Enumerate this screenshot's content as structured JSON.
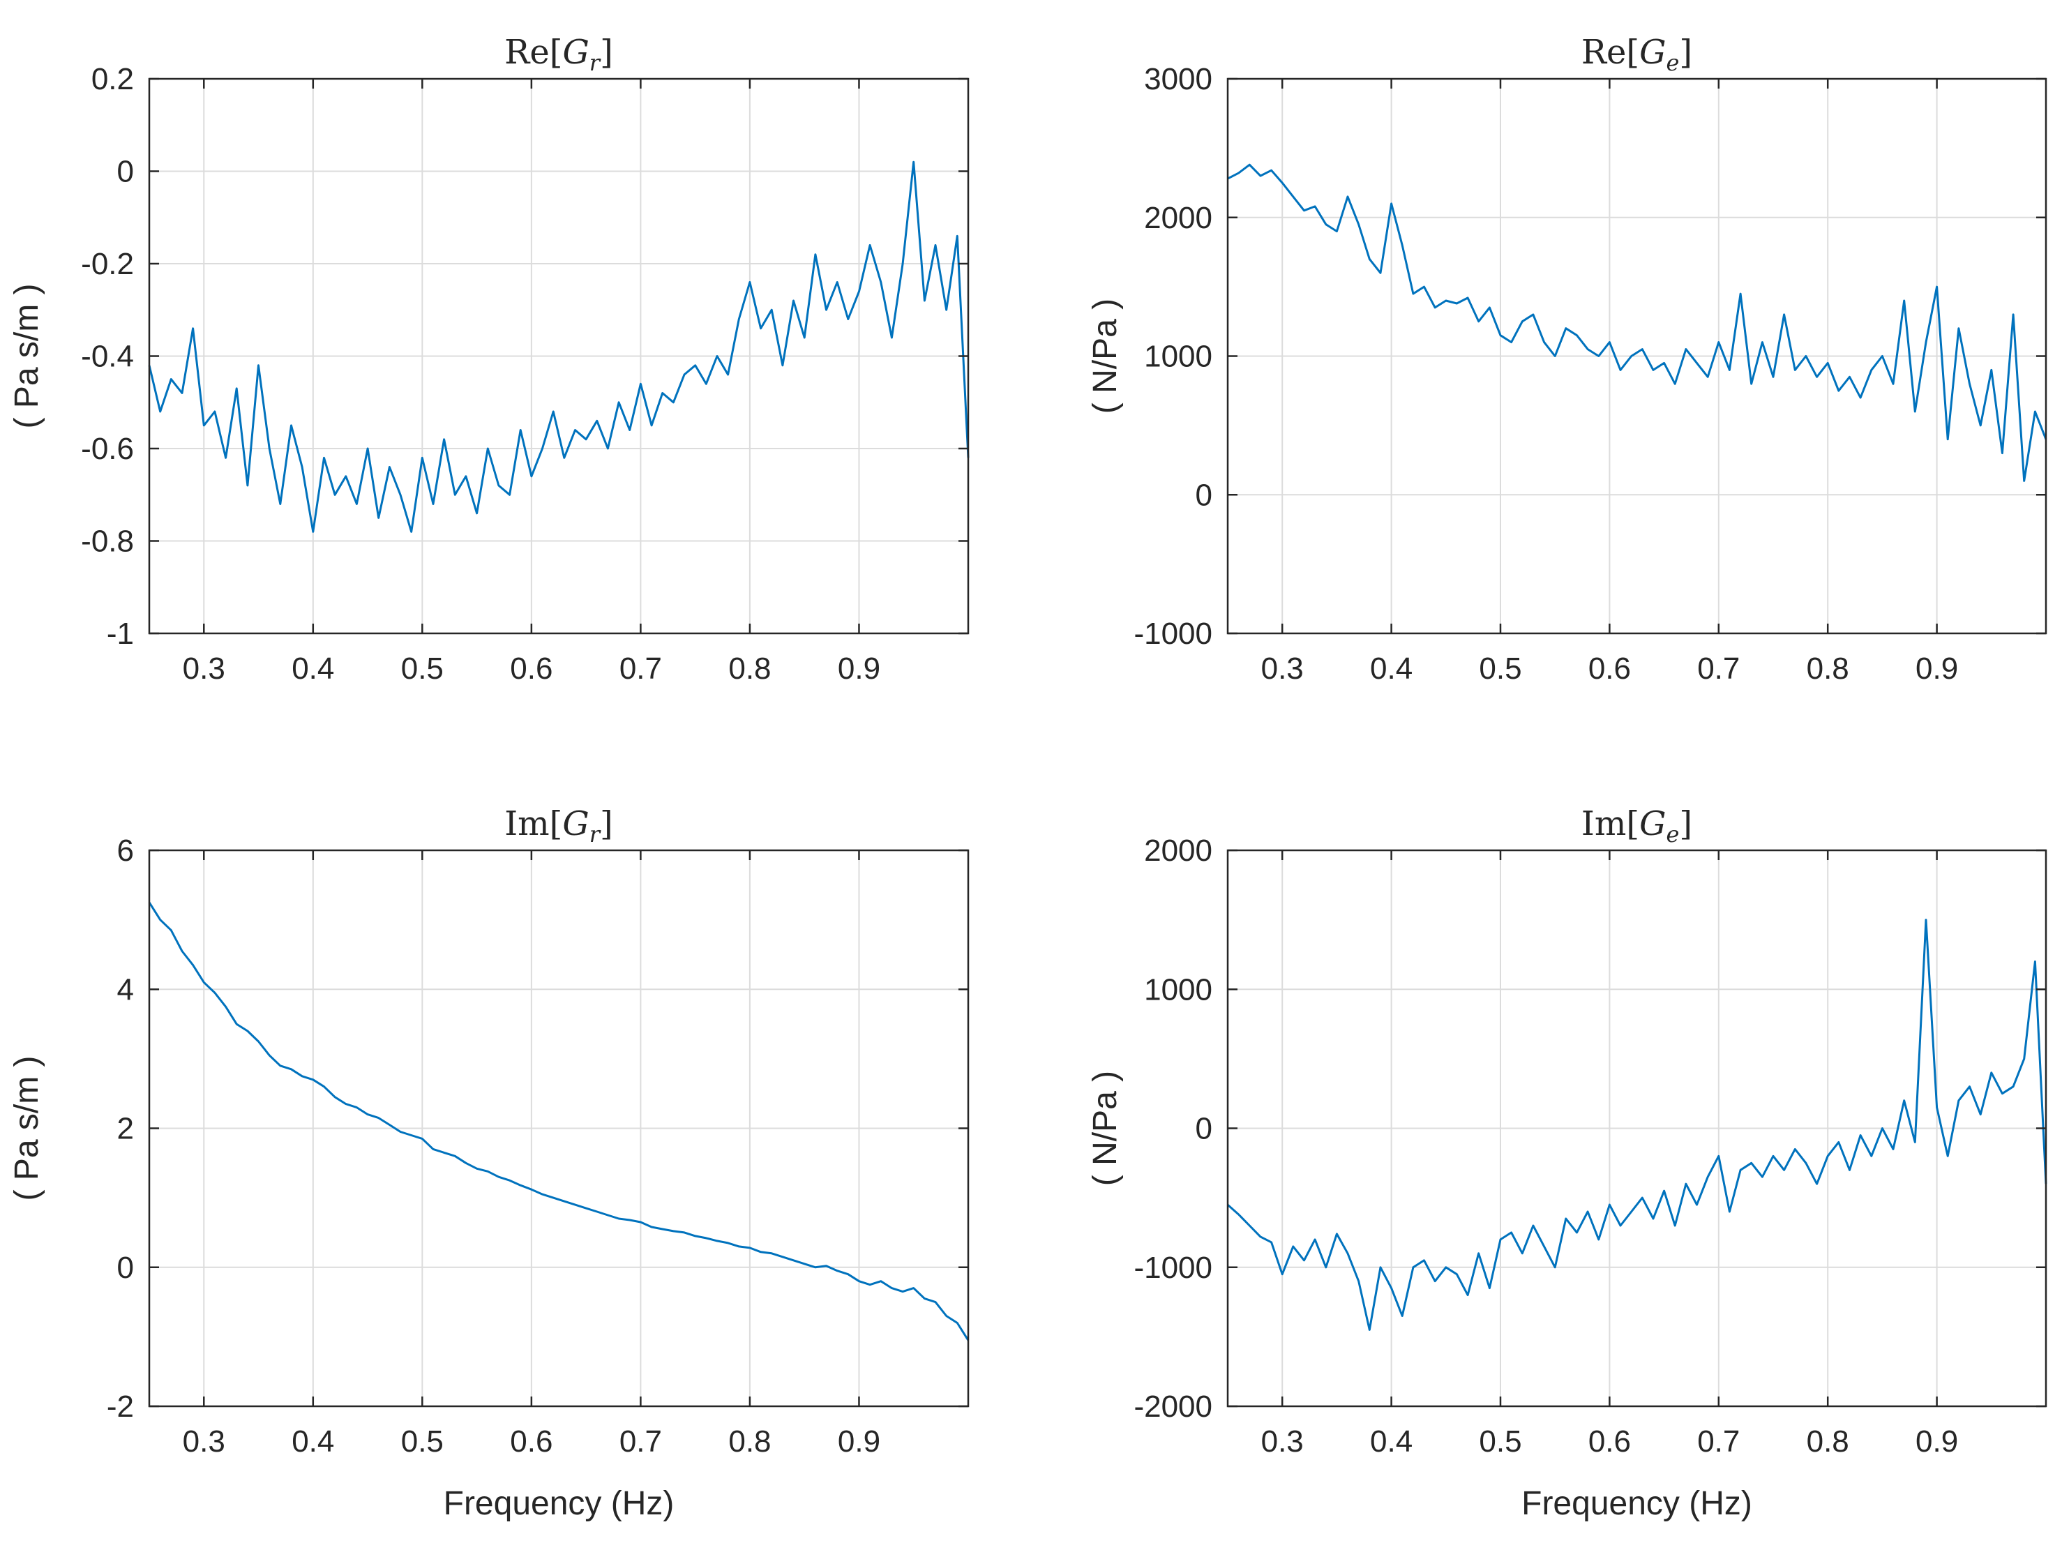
{
  "colors": {
    "line": "#0072bd",
    "grid": "#dcdcdc",
    "axis": "#262626",
    "background": "#ffffff"
  },
  "chart_data": [
    {
      "type": "line",
      "title_base": "Re",
      "title_var": "G",
      "title_sub": "r",
      "xlabel": "",
      "ylabel": "( Pa s/m )",
      "xlim": [
        0.25,
        1.0
      ],
      "ylim": [
        -1,
        0.2
      ],
      "xticks": [
        0.3,
        0.4,
        0.5,
        0.6,
        0.7,
        0.8,
        0.9
      ],
      "xtick_labels": [
        "0.3",
        "0.4",
        "0.5",
        "0.6",
        "0.7",
        "0.8",
        "0.9"
      ],
      "yticks": [
        -1,
        -0.8,
        -0.6,
        -0.4,
        -0.2,
        0,
        0.2
      ],
      "ytick_labels": [
        "-1",
        "-0.8",
        "-0.6",
        "-0.4",
        "-0.2",
        "0",
        "0.2"
      ],
      "grid": true,
      "series": [
        {
          "name": "Re[Gr]",
          "x": [
            0.25,
            0.26,
            0.27,
            0.28,
            0.29,
            0.3,
            0.31,
            0.32,
            0.33,
            0.34,
            0.35,
            0.36,
            0.37,
            0.38,
            0.39,
            0.4,
            0.41,
            0.42,
            0.43,
            0.44,
            0.45,
            0.46,
            0.47,
            0.48,
            0.49,
            0.5,
            0.51,
            0.52,
            0.53,
            0.54,
            0.55,
            0.56,
            0.57,
            0.58,
            0.59,
            0.6,
            0.61,
            0.62,
            0.63,
            0.64,
            0.65,
            0.66,
            0.67,
            0.68,
            0.69,
            0.7,
            0.71,
            0.72,
            0.73,
            0.74,
            0.75,
            0.76,
            0.77,
            0.78,
            0.79,
            0.8,
            0.81,
            0.82,
            0.83,
            0.84,
            0.85,
            0.86,
            0.87,
            0.88,
            0.89,
            0.9,
            0.91,
            0.92,
            0.93,
            0.94,
            0.95,
            0.96,
            0.97,
            0.98,
            0.99,
            1.0
          ],
          "y": [
            -0.42,
            -0.52,
            -0.45,
            -0.48,
            -0.34,
            -0.55,
            -0.52,
            -0.62,
            -0.47,
            -0.68,
            -0.42,
            -0.6,
            -0.72,
            -0.55,
            -0.64,
            -0.78,
            -0.62,
            -0.7,
            -0.66,
            -0.72,
            -0.6,
            -0.75,
            -0.64,
            -0.7,
            -0.78,
            -0.62,
            -0.72,
            -0.58,
            -0.7,
            -0.66,
            -0.74,
            -0.6,
            -0.68,
            -0.7,
            -0.56,
            -0.66,
            -0.6,
            -0.52,
            -0.62,
            -0.56,
            -0.58,
            -0.54,
            -0.6,
            -0.5,
            -0.56,
            -0.46,
            -0.55,
            -0.48,
            -0.5,
            -0.44,
            -0.42,
            -0.46,
            -0.4,
            -0.44,
            -0.32,
            -0.24,
            -0.34,
            -0.3,
            -0.42,
            -0.28,
            -0.36,
            -0.18,
            -0.3,
            -0.24,
            -0.32,
            -0.26,
            -0.16,
            -0.24,
            -0.36,
            -0.2,
            0.02,
            -0.28,
            -0.16,
            -0.3,
            -0.14,
            -0.62
          ]
        }
      ]
    },
    {
      "type": "line",
      "title_base": "Re",
      "title_var": "G",
      "title_sub": "e",
      "xlabel": "",
      "ylabel": "( N/Pa )",
      "xlim": [
        0.25,
        1.0
      ],
      "ylim": [
        -1000,
        3000
      ],
      "xticks": [
        0.3,
        0.4,
        0.5,
        0.6,
        0.7,
        0.8,
        0.9
      ],
      "xtick_labels": [
        "0.3",
        "0.4",
        "0.5",
        "0.6",
        "0.7",
        "0.8",
        "0.9"
      ],
      "yticks": [
        -1000,
        0,
        1000,
        2000,
        3000
      ],
      "ytick_labels": [
        "-1000",
        "0",
        "1000",
        "2000",
        "3000"
      ],
      "grid": true,
      "series": [
        {
          "name": "Re[Ge]",
          "x": [
            0.25,
            0.26,
            0.27,
            0.28,
            0.29,
            0.3,
            0.31,
            0.32,
            0.33,
            0.34,
            0.35,
            0.36,
            0.37,
            0.38,
            0.39,
            0.4,
            0.41,
            0.42,
            0.43,
            0.44,
            0.45,
            0.46,
            0.47,
            0.48,
            0.49,
            0.5,
            0.51,
            0.52,
            0.53,
            0.54,
            0.55,
            0.56,
            0.57,
            0.58,
            0.59,
            0.6,
            0.61,
            0.62,
            0.63,
            0.64,
            0.65,
            0.66,
            0.67,
            0.68,
            0.69,
            0.7,
            0.71,
            0.72,
            0.73,
            0.74,
            0.75,
            0.76,
            0.77,
            0.78,
            0.79,
            0.8,
            0.81,
            0.82,
            0.83,
            0.84,
            0.85,
            0.86,
            0.87,
            0.88,
            0.89,
            0.9,
            0.91,
            0.92,
            0.93,
            0.94,
            0.95,
            0.96,
            0.97,
            0.98,
            0.99,
            1.0
          ],
          "y": [
            2280,
            2320,
            2380,
            2300,
            2340,
            2250,
            2150,
            2050,
            2080,
            1950,
            1900,
            2150,
            1950,
            1700,
            1600,
            2100,
            1800,
            1450,
            1500,
            1350,
            1400,
            1380,
            1420,
            1250,
            1350,
            1150,
            1100,
            1250,
            1300,
            1100,
            1000,
            1200,
            1150,
            1050,
            1000,
            1100,
            900,
            1000,
            1050,
            900,
            950,
            800,
            1050,
            950,
            850,
            1100,
            900,
            1450,
            800,
            1100,
            850,
            1300,
            900,
            1000,
            850,
            950,
            750,
            850,
            700,
            900,
            1000,
            800,
            1400,
            600,
            1100,
            1500,
            400,
            1200,
            800,
            500,
            900,
            300,
            1300,
            100,
            600,
            400
          ]
        }
      ]
    },
    {
      "type": "line",
      "title_base": "Im",
      "title_var": "G",
      "title_sub": "r",
      "xlabel": "Frequency (Hz)",
      "ylabel": "( Pa s/m )",
      "xlim": [
        0.25,
        1.0
      ],
      "ylim": [
        -2,
        6
      ],
      "xticks": [
        0.3,
        0.4,
        0.5,
        0.6,
        0.7,
        0.8,
        0.9
      ],
      "xtick_labels": [
        "0.3",
        "0.4",
        "0.5",
        "0.6",
        "0.7",
        "0.8",
        "0.9"
      ],
      "yticks": [
        -2,
        0,
        2,
        4,
        6
      ],
      "ytick_labels": [
        "-2",
        "0",
        "2",
        "4",
        "6"
      ],
      "grid": true,
      "series": [
        {
          "name": "Im[Gr]",
          "x": [
            0.25,
            0.26,
            0.27,
            0.28,
            0.29,
            0.3,
            0.31,
            0.32,
            0.33,
            0.34,
            0.35,
            0.36,
            0.37,
            0.38,
            0.39,
            0.4,
            0.41,
            0.42,
            0.43,
            0.44,
            0.45,
            0.46,
            0.47,
            0.48,
            0.49,
            0.5,
            0.51,
            0.52,
            0.53,
            0.54,
            0.55,
            0.56,
            0.57,
            0.58,
            0.59,
            0.6,
            0.61,
            0.62,
            0.63,
            0.64,
            0.65,
            0.66,
            0.67,
            0.68,
            0.69,
            0.7,
            0.71,
            0.72,
            0.73,
            0.74,
            0.75,
            0.76,
            0.77,
            0.78,
            0.79,
            0.8,
            0.81,
            0.82,
            0.83,
            0.84,
            0.85,
            0.86,
            0.87,
            0.88,
            0.89,
            0.9,
            0.91,
            0.92,
            0.93,
            0.94,
            0.95,
            0.96,
            0.97,
            0.98,
            0.99,
            1.0
          ],
          "y": [
            5.25,
            5.0,
            4.85,
            4.55,
            4.35,
            4.1,
            3.95,
            3.75,
            3.5,
            3.4,
            3.25,
            3.05,
            2.9,
            2.85,
            2.75,
            2.7,
            2.6,
            2.45,
            2.35,
            2.3,
            2.2,
            2.15,
            2.05,
            1.95,
            1.9,
            1.85,
            1.7,
            1.65,
            1.6,
            1.5,
            1.42,
            1.38,
            1.3,
            1.25,
            1.18,
            1.12,
            1.05,
            1.0,
            0.95,
            0.9,
            0.85,
            0.8,
            0.75,
            0.7,
            0.68,
            0.65,
            0.58,
            0.55,
            0.52,
            0.5,
            0.45,
            0.42,
            0.38,
            0.35,
            0.3,
            0.28,
            0.22,
            0.2,
            0.15,
            0.1,
            0.05,
            0.0,
            0.02,
            -0.05,
            -0.1,
            -0.2,
            -0.25,
            -0.2,
            -0.3,
            -0.35,
            -0.3,
            -0.45,
            -0.5,
            -0.7,
            -0.8,
            -1.05
          ]
        }
      ]
    },
    {
      "type": "line",
      "title_base": "Im",
      "title_var": "G",
      "title_sub": "e",
      "xlabel": "Frequency (Hz)",
      "ylabel": "( N/Pa )",
      "xlim": [
        0.25,
        1.0
      ],
      "ylim": [
        -2000,
        2000
      ],
      "xticks": [
        0.3,
        0.4,
        0.5,
        0.6,
        0.7,
        0.8,
        0.9
      ],
      "xtick_labels": [
        "0.3",
        "0.4",
        "0.5",
        "0.6",
        "0.7",
        "0.8",
        "0.9"
      ],
      "yticks": [
        -2000,
        -1000,
        0,
        1000,
        2000
      ],
      "ytick_labels": [
        "-2000",
        "-1000",
        "0",
        "1000",
        "2000"
      ],
      "grid": true,
      "series": [
        {
          "name": "Im[Ge]",
          "x": [
            0.25,
            0.26,
            0.27,
            0.28,
            0.29,
            0.3,
            0.31,
            0.32,
            0.33,
            0.34,
            0.35,
            0.36,
            0.37,
            0.38,
            0.39,
            0.4,
            0.41,
            0.42,
            0.43,
            0.44,
            0.45,
            0.46,
            0.47,
            0.48,
            0.49,
            0.5,
            0.51,
            0.52,
            0.53,
            0.54,
            0.55,
            0.56,
            0.57,
            0.58,
            0.59,
            0.6,
            0.61,
            0.62,
            0.63,
            0.64,
            0.65,
            0.66,
            0.67,
            0.68,
            0.69,
            0.7,
            0.71,
            0.72,
            0.73,
            0.74,
            0.75,
            0.76,
            0.77,
            0.78,
            0.79,
            0.8,
            0.81,
            0.82,
            0.83,
            0.84,
            0.85,
            0.86,
            0.87,
            0.88,
            0.89,
            0.9,
            0.91,
            0.92,
            0.93,
            0.94,
            0.95,
            0.96,
            0.97,
            0.98,
            0.99,
            1.0
          ],
          "y": [
            -550,
            -620,
            -700,
            -780,
            -820,
            -1050,
            -850,
            -950,
            -800,
            -1000,
            -760,
            -900,
            -1100,
            -1450,
            -1000,
            -1150,
            -1350,
            -1000,
            -950,
            -1100,
            -1000,
            -1050,
            -1200,
            -900,
            -1150,
            -800,
            -750,
            -900,
            -700,
            -850,
            -1000,
            -650,
            -750,
            -600,
            -800,
            -550,
            -700,
            -600,
            -500,
            -650,
            -450,
            -700,
            -400,
            -550,
            -350,
            -200,
            -600,
            -300,
            -250,
            -350,
            -200,
            -300,
            -150,
            -250,
            -400,
            -200,
            -100,
            -300,
            -50,
            -200,
            0,
            -150,
            200,
            -100,
            1500,
            150,
            -200,
            200,
            300,
            100,
            400,
            250,
            300,
            500,
            1200,
            -400
          ]
        }
      ]
    }
  ]
}
